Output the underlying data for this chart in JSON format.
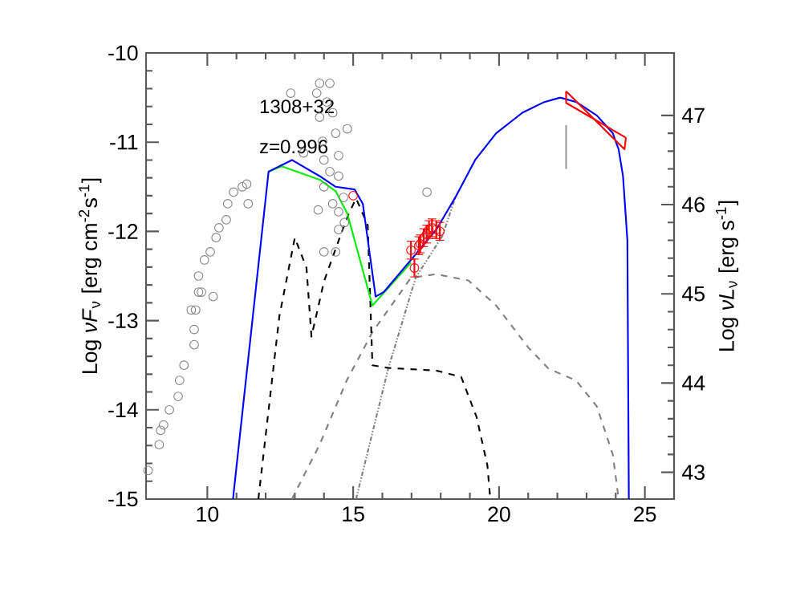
{
  "chart_data": {
    "type": "line",
    "ylabel": "Log *νF*$_{ν}$ [erg cm$^{-2}$s$^{-1}$]",
    "y2label": "Log *νL*$_{ν}$ [erg s$^{-1}$]",
    "annotations": [
      "1308+32",
      "z=0.996"
    ],
    "xlim": [
      7.9,
      26
    ],
    "xticks": [
      10,
      15,
      20,
      25
    ],
    "ylim": [
      -15,
      -10
    ],
    "yticks": [
      -15,
      -14,
      -13,
      -12,
      -11,
      -10
    ],
    "y2lim": [
      42.7,
      47.7
    ],
    "y2ticks": [
      43,
      44,
      45,
      46,
      47
    ],
    "grid": false,
    "series": [
      {
        "type": "scatter",
        "color": "#808080",
        "marker": "circle",
        "x": [
          7.97,
          8.35,
          8.4,
          8.5,
          8.7,
          9.0,
          9.05,
          9.2,
          9.55,
          9.55,
          9.6,
          9.8,
          10.2,
          9.45,
          9.7,
          9.7,
          9.9,
          10.1,
          10.3,
          10.4,
          10.65,
          10.7,
          10.9,
          11.2,
          11.35,
          11.4,
          12.86,
          13.3,
          13.75,
          13.85,
          13.85,
          13.95,
          14.0,
          14.1,
          14.2,
          14.3,
          14.4,
          14.5,
          14.5,
          14.67,
          14.5,
          14.5,
          14.4,
          14.0,
          13.8,
          14.0,
          14.2,
          14.3,
          14.7,
          14.8,
          17.53
        ],
        "values": [
          -14.68,
          -14.39,
          -14.23,
          -14.17,
          -14.0,
          -13.85,
          -13.67,
          -13.5,
          -13.27,
          -13.1,
          -12.88,
          -12.68,
          -12.73,
          -12.88,
          -12.68,
          -12.5,
          -12.32,
          -12.23,
          -12.07,
          -11.96,
          -11.87,
          -11.69,
          -11.56,
          -11.5,
          -11.47,
          -11.69,
          -10.45,
          -11.12,
          -10.45,
          -10.34,
          -10.72,
          -10.99,
          -11.2,
          -10.55,
          -10.34,
          -10.67,
          -10.9,
          -11.15,
          -11.38,
          -11.62,
          -11.78,
          -11.98,
          -12.23,
          -12.23,
          -11.76,
          -11.5,
          -11.33,
          -11.69,
          -11.9,
          -10.85,
          -11.56
        ]
      },
      {
        "color": "#808080",
        "line_style": "dashed",
        "x": [
          12.9,
          13.85,
          14.78,
          15.66,
          16.98,
          17.85,
          18.95,
          19.9,
          21.0,
          21.7,
          22.64,
          23.35,
          23.9,
          24.1
        ],
        "values": [
          -15,
          -14.39,
          -13.67,
          -13.13,
          -12.52,
          -12.48,
          -12.55,
          -12.83,
          -13.3,
          -13.54,
          -13.67,
          -13.96,
          -14.5,
          -15
        ]
      },
      {
        "color": "#808080",
        "line_style": "dashdotted",
        "x": [
          15.1,
          16.2,
          17.14,
          18.06,
          18.5
        ],
        "values": [
          -15,
          -13.54,
          -12.52,
          -12.05,
          -11.62
        ]
      },
      {
        "color": "#000000",
        "line_style": "dashed",
        "x": [
          11.75,
          12.47,
          13.0,
          13.4,
          13.57,
          14.0,
          14.56,
          14.85,
          15.1,
          15.5,
          15.66,
          16.2,
          17.85,
          18.7,
          19.23,
          19.6,
          19.7
        ],
        "values": [
          -15,
          -12.95,
          -12.07,
          -12.41,
          -13.18,
          -12.56,
          -12.05,
          -11.8,
          -11.63,
          -11.93,
          -13.5,
          -13.53,
          -13.56,
          -13.63,
          -14.08,
          -14.62,
          -15
        ]
      },
      {
        "color": "#00ee00",
        "line_style": "solid",
        "x": [
          12.1,
          12.55,
          13.85,
          14.4,
          14.8,
          15.05,
          15.66,
          16.98
        ],
        "values": [
          -11.33,
          -11.27,
          -11.42,
          -11.55,
          -11.8,
          -12.1,
          -12.83,
          -12.35
        ]
      },
      {
        "color": "#0000ff",
        "line_style": "solid",
        "x": [
          10.88,
          12.1,
          12.9,
          13.85,
          14.4,
          15.05,
          15.33,
          15.77,
          16.05,
          16.98,
          17.85,
          18.5,
          19.18,
          19.9,
          20.8,
          21.55,
          22.1,
          22.65,
          23.35,
          23.9,
          24.1,
          24.25,
          24.4,
          24.45
        ],
        "values": [
          -15,
          -11.33,
          -11.2,
          -11.38,
          -11.5,
          -11.53,
          -11.69,
          -12.73,
          -12.68,
          -12.32,
          -11.98,
          -11.62,
          -11.2,
          -10.9,
          -10.67,
          -10.55,
          -10.5,
          -10.55,
          -10.7,
          -10.9,
          -11.08,
          -11.38,
          -12.1,
          -15
        ]
      },
      {
        "type": "scatter",
        "color": "#ff0000",
        "marker": "circle",
        "x": [
          15.0,
          16.98,
          17.1,
          17.25,
          17.3,
          17.42,
          17.52,
          17.6,
          17.7,
          17.85,
          17.97
        ],
        "values": [
          -11.6,
          -12.21,
          -12.41,
          -12.16,
          -12.14,
          -12.07,
          -12.03,
          -11.98,
          -11.96,
          -11.98,
          -12.0
        ],
        "errors": [
          null,
          0.1,
          0.1,
          0.1,
          0.1,
          0.1,
          0.1,
          0.1,
          0.1,
          0.1,
          0.1
        ]
      },
      {
        "color": "#ff0000",
        "line_style": "solid",
        "x": [
          22.3,
          24.3,
          24.35
        ],
        "values": [
          -10.43,
          -11.08,
          -10.95
        ]
      },
      {
        "color": "#ff0000",
        "line_style": "solid",
        "x": [
          22.3,
          22.3,
          24.35
        ],
        "values": [
          -10.43,
          -10.56,
          -10.95
        ]
      },
      {
        "color": "#999999",
        "line_style": "solid",
        "x": [
          22.3,
          22.3
        ],
        "values": [
          -10.81,
          -11.3
        ]
      }
    ]
  }
}
